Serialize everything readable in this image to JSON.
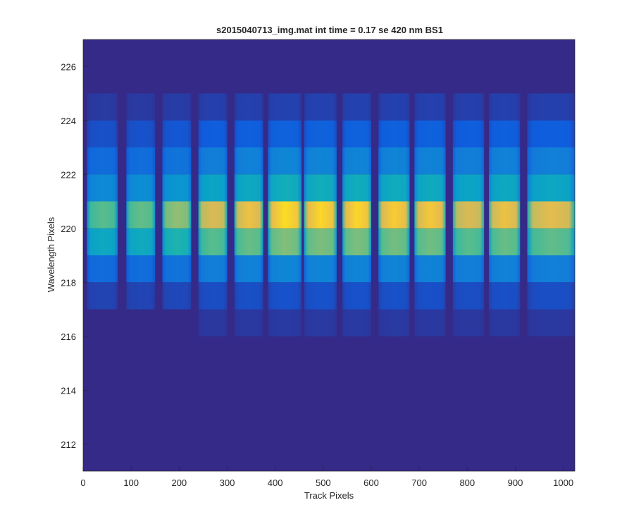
{
  "chart_data": {
    "type": "heatmap",
    "title": "s2015040713_img.mat int time = 0.17 se  420 nm BS1",
    "xlabel": "Track Pixels",
    "ylabel": "Wavelength Pixels",
    "xlim": [
      0,
      1024
    ],
    "ylim": [
      211,
      227
    ],
    "xticks": [
      0,
      100,
      200,
      300,
      400,
      500,
      600,
      700,
      800,
      900,
      1000
    ],
    "yticks": [
      212,
      214,
      216,
      218,
      220,
      222,
      224,
      226
    ],
    "xtick_labels": [
      "0",
      "100",
      "200",
      "300",
      "400",
      "500",
      "600",
      "700",
      "800",
      "900",
      "1000"
    ],
    "ytick_labels": [
      "212",
      "214",
      "216",
      "218",
      "220",
      "222",
      "224",
      "226"
    ],
    "colormap": "parula",
    "background_color": "#352a87",
    "grid": false,
    "track_bands": [
      {
        "x_start": 8,
        "x_end": 72,
        "peak": 0.62
      },
      {
        "x_start": 90,
        "x_end": 150,
        "peak": 0.64
      },
      {
        "x_start": 165,
        "x_end": 225,
        "peak": 0.72
      },
      {
        "x_start": 240,
        "x_end": 300,
        "peak": 0.86
      },
      {
        "x_start": 315,
        "x_end": 375,
        "peak": 0.9
      },
      {
        "x_start": 385,
        "x_end": 455,
        "peak": 0.96
      },
      {
        "x_start": 460,
        "x_end": 528,
        "peak": 0.95
      },
      {
        "x_start": 540,
        "x_end": 600,
        "peak": 0.95
      },
      {
        "x_start": 615,
        "x_end": 680,
        "peak": 0.93
      },
      {
        "x_start": 690,
        "x_end": 755,
        "peak": 0.92
      },
      {
        "x_start": 770,
        "x_end": 835,
        "peak": 0.86
      },
      {
        "x_start": 845,
        "x_end": 910,
        "peak": 0.9
      },
      {
        "x_start": 925,
        "x_end": 1024,
        "peak": 0.88
      }
    ],
    "row_profile": [
      {
        "y": 224,
        "relative": 0.06
      },
      {
        "y": 223,
        "relative": 0.15
      },
      {
        "y": 222,
        "relative": 0.3
      },
      {
        "y": 221,
        "relative": 0.5
      },
      {
        "y": 220,
        "relative": 1.0
      },
      {
        "y": 219,
        "relative": 0.72
      },
      {
        "y": 218,
        "relative": 0.3
      },
      {
        "y": 217,
        "relative": 0.1
      },
      {
        "y": 216,
        "relative": 0.04
      }
    ]
  }
}
